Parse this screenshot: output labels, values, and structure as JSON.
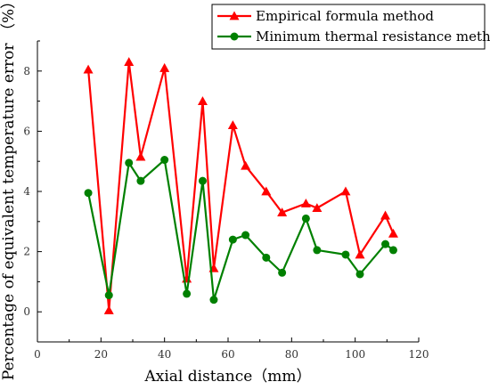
{
  "chart_data": {
    "type": "line",
    "xlabel": "Axial distance（mm）",
    "ylabel": "Percentage of equivalent temperature error （%）",
    "xlim": [
      0,
      120
    ],
    "ylim": [
      -1,
      9
    ],
    "xticks": [
      0,
      20,
      40,
      60,
      80,
      100,
      120
    ],
    "yticks": [
      0,
      2,
      4,
      6,
      8
    ],
    "legend_position": "top-right",
    "grid": false,
    "series": [
      {
        "name": "Empirical formula method",
        "color": "#ff0000",
        "marker": "triangle",
        "points": [
          {
            "x": 16,
            "y": 8.05
          },
          {
            "x": 22.5,
            "y": 0.05
          },
          {
            "x": 28.8,
            "y": 8.3
          },
          {
            "x": 32.5,
            "y": 5.15
          },
          {
            "x": 40,
            "y": 8.1
          },
          {
            "x": 47,
            "y": 1.1
          },
          {
            "x": 52,
            "y": 7.0
          },
          {
            "x": 55.5,
            "y": 1.45
          },
          {
            "x": 61.5,
            "y": 6.2
          },
          {
            "x": 65.5,
            "y": 4.85
          },
          {
            "x": 72,
            "y": 4.0
          },
          {
            "x": 77,
            "y": 3.3
          },
          {
            "x": 84.5,
            "y": 3.6
          },
          {
            "x": 88,
            "y": 3.45
          },
          {
            "x": 97,
            "y": 4.0
          },
          {
            "x": 101.5,
            "y": 1.9
          },
          {
            "x": 109.5,
            "y": 3.2
          },
          {
            "x": 112,
            "y": 2.6
          }
        ]
      },
      {
        "name": "Minimum thermal resistance method",
        "color": "#008000",
        "marker": "circle",
        "points": [
          {
            "x": 16,
            "y": 3.95
          },
          {
            "x": 22.5,
            "y": 0.55
          },
          {
            "x": 28.8,
            "y": 4.95
          },
          {
            "x": 32.5,
            "y": 4.35
          },
          {
            "x": 40,
            "y": 5.05
          },
          {
            "x": 47,
            "y": 0.6
          },
          {
            "x": 52,
            "y": 4.35
          },
          {
            "x": 55.5,
            "y": 0.4
          },
          {
            "x": 61.5,
            "y": 2.4
          },
          {
            "x": 65.5,
            "y": 2.55
          },
          {
            "x": 72,
            "y": 1.8
          },
          {
            "x": 77,
            "y": 1.3
          },
          {
            "x": 84.5,
            "y": 3.1
          },
          {
            "x": 88,
            "y": 2.05
          },
          {
            "x": 97,
            "y": 1.9
          },
          {
            "x": 101.5,
            "y": 1.25
          },
          {
            "x": 109.5,
            "y": 2.25
          },
          {
            "x": 112,
            "y": 2.05
          }
        ]
      }
    ]
  }
}
